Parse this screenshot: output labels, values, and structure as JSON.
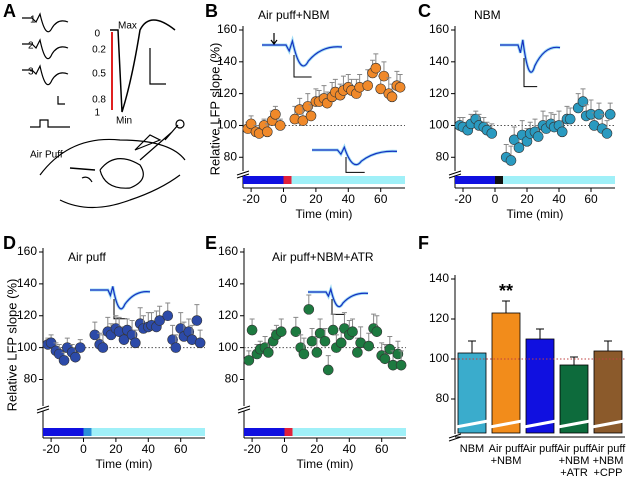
{
  "diagram": {
    "panel": "A",
    "trace_labels": [
      "1",
      "2",
      "3"
    ],
    "scale_labels": [
      "Max",
      "0",
      "0.2",
      "0.5",
      "0.8",
      "1",
      "Min"
    ],
    "stimulus_label": "Air Puff"
  },
  "chart_data": [
    {
      "type": "scatter",
      "panel": "B",
      "title": "Air puff+NBM",
      "y_label": "Relative LFP slope (%)",
      "x_label": "Time (min)",
      "x": [
        -22,
        -20,
        -17,
        -15,
        -12,
        -10,
        -7,
        -5,
        -2,
        7,
        10,
        12,
        15,
        17,
        20,
        22,
        25,
        27,
        30,
        32,
        35,
        37,
        40,
        42,
        45,
        47,
        52,
        55,
        57,
        60,
        62,
        65,
        67,
        70,
        72
      ],
      "values": [
        98,
        101,
        96,
        95,
        100,
        96,
        103,
        107,
        100,
        104,
        110,
        103,
        112,
        106,
        115,
        115,
        117,
        114,
        118,
        121,
        119,
        122,
        124,
        122,
        120,
        124,
        125,
        133,
        136,
        123,
        131,
        120,
        118,
        125,
        124
      ],
      "errors": [
        4,
        5,
        4,
        5,
        4,
        5,
        6,
        5,
        4,
        8,
        7,
        9,
        8,
        7,
        8,
        7,
        8,
        7,
        9,
        8,
        7,
        9,
        8,
        7,
        9,
        8,
        10,
        8,
        9,
        8,
        9,
        10,
        8,
        9,
        8
      ],
      "color": "#f0892a",
      "hline": 100,
      "xlim": [
        -25,
        75
      ],
      "ylim": [
        72,
        160
      ],
      "xticks": [
        -20,
        0,
        20,
        40,
        60
      ],
      "yticks": [
        80,
        100,
        120,
        140,
        160
      ],
      "phases": [
        {
          "color": "#1010e0",
          "start": -25,
          "end": 0
        },
        {
          "color": "#e0203a",
          "start": 0,
          "end": 5
        },
        {
          "color": "#a0f0f8",
          "start": 5,
          "end": 75
        }
      ]
    },
    {
      "type": "scatter",
      "panel": "C",
      "title": "NBM",
      "x_label": "Time (min)",
      "x": [
        -22,
        -20,
        -17,
        -15,
        -12,
        -10,
        -7,
        -5,
        -2,
        7,
        10,
        12,
        15,
        17,
        20,
        22,
        25,
        27,
        30,
        32,
        35,
        37,
        40,
        42,
        45,
        47,
        52,
        55,
        57,
        60,
        62,
        65,
        67,
        70,
        72
      ],
      "values": [
        100,
        99,
        97,
        101,
        104,
        100,
        99,
        97,
        95,
        80,
        78,
        91,
        86,
        94,
        90,
        95,
        96,
        93,
        100,
        98,
        101,
        99,
        100,
        96,
        104,
        104,
        111,
        115,
        106,
        107,
        100,
        107,
        98,
        95,
        107
      ],
      "errors": [
        5,
        6,
        5,
        6,
        5,
        7,
        6,
        5,
        6,
        8,
        9,
        8,
        7,
        9,
        8,
        7,
        8,
        7,
        9,
        8,
        7,
        8,
        9,
        7,
        8,
        7,
        9,
        8,
        7,
        9,
        8,
        7,
        9,
        8,
        7
      ],
      "color": "#2a9ac0",
      "hline": 100,
      "xlim": [
        -25,
        75
      ],
      "ylim": [
        72,
        160
      ],
      "xticks": [
        -20,
        0,
        20,
        40,
        60
      ],
      "yticks": [
        80,
        100,
        120,
        140,
        160
      ],
      "phases": [
        {
          "color": "#1010e0",
          "start": -25,
          "end": 0
        },
        {
          "color": "#111111",
          "start": 0,
          "end": 5
        },
        {
          "color": "#a0f0f8",
          "start": 5,
          "end": 75
        }
      ]
    },
    {
      "type": "scatter",
      "panel": "D",
      "title": "Air puff",
      "y_label": "Relative LFP slope (%)",
      "x_label": "Time (min)",
      "x": [
        -22,
        -20,
        -17,
        -15,
        -12,
        -10,
        -7,
        -5,
        -2,
        7,
        10,
        12,
        15,
        17,
        20,
        22,
        25,
        27,
        30,
        32,
        35,
        37,
        40,
        42,
        45,
        47,
        52,
        55,
        57,
        60,
        62,
        65,
        67,
        70,
        72
      ],
      "values": [
        102,
        103,
        98,
        96,
        92,
        100,
        97,
        94,
        100,
        108,
        102,
        100,
        110,
        108,
        112,
        110,
        105,
        111,
        108,
        103,
        115,
        112,
        113,
        114,
        113,
        117,
        120,
        105,
        100,
        112,
        107,
        110,
        105,
        117,
        103
      ],
      "errors": [
        4,
        5,
        5,
        6,
        5,
        6,
        5,
        6,
        5,
        8,
        7,
        8,
        9,
        7,
        8,
        9,
        8,
        7,
        9,
        8,
        10,
        8,
        9,
        8,
        10,
        9,
        8,
        9,
        8,
        10,
        9,
        8,
        9,
        10,
        8
      ],
      "color": "#2c4aa8",
      "hline": 100,
      "xlim": [
        -25,
        75
      ],
      "ylim": [
        64,
        160
      ],
      "xticks": [
        -20,
        0,
        20,
        40,
        60
      ],
      "yticks": [
        80,
        100,
        120,
        140,
        160
      ],
      "phases": [
        {
          "color": "#1010e0",
          "start": -25,
          "end": 0
        },
        {
          "color": "#2a8fd8",
          "start": 0,
          "end": 5
        },
        {
          "color": "#a0f0f8",
          "start": 5,
          "end": 75
        }
      ]
    },
    {
      "type": "scatter",
      "panel": "E",
      "title": "Air puff+NBM+ATR",
      "x_label": "Time (min)",
      "x": [
        -22,
        -20,
        -17,
        -15,
        -12,
        -10,
        -7,
        -5,
        -2,
        7,
        10,
        12,
        15,
        17,
        20,
        22,
        25,
        27,
        30,
        32,
        35,
        37,
        40,
        42,
        45,
        47,
        52,
        55,
        57,
        60,
        62,
        65,
        67,
        70,
        72
      ],
      "values": [
        92,
        111,
        96,
        99,
        100,
        97,
        104,
        108,
        110,
        110,
        100,
        96,
        124,
        104,
        97,
        109,
        104,
        86,
        111,
        100,
        103,
        112,
        108,
        110,
        97,
        103,
        101,
        112,
        110,
        95,
        93,
        99,
        89,
        96,
        89
      ],
      "errors": [
        6,
        7,
        6,
        5,
        7,
        6,
        7,
        6,
        8,
        9,
        8,
        10,
        9,
        8,
        10,
        9,
        8,
        9,
        10,
        8,
        9,
        10,
        9,
        8,
        9,
        10,
        8,
        9,
        10,
        8,
        9,
        8,
        9,
        8,
        9
      ],
      "color": "#1d7a40",
      "hline": 100,
      "xlim": [
        -25,
        75
      ],
      "ylim": [
        64,
        160
      ],
      "xticks": [
        -20,
        0,
        20,
        40,
        60
      ],
      "yticks": [
        80,
        100,
        120,
        140,
        160
      ],
      "phases": [
        {
          "color": "#1010e0",
          "start": -25,
          "end": 0
        },
        {
          "color": "#e0203a",
          "start": 0,
          "end": 5
        },
        {
          "color": "#a0f0f8",
          "start": 5,
          "end": 75
        }
      ]
    },
    {
      "type": "bar",
      "panel": "F",
      "categories": [
        "NBM",
        "Air puff\n+NBM",
        "Air puff",
        "Air puff\n+NBM\n+ATR",
        "Air puff\n+NBM\n+CPP"
      ],
      "values": [
        103,
        123,
        110,
        97,
        104
      ],
      "errors": [
        6,
        6,
        5,
        4,
        5
      ],
      "colors": [
        "#3aaccc",
        "#f28c1b",
        "#1010e0",
        "#0d6b3c",
        "#8b5a2b"
      ],
      "significance": [
        null,
        "**",
        null,
        null,
        null
      ],
      "hline": 100,
      "ylim": [
        63,
        140
      ],
      "yticks": [
        80,
        100,
        120,
        140
      ]
    }
  ]
}
